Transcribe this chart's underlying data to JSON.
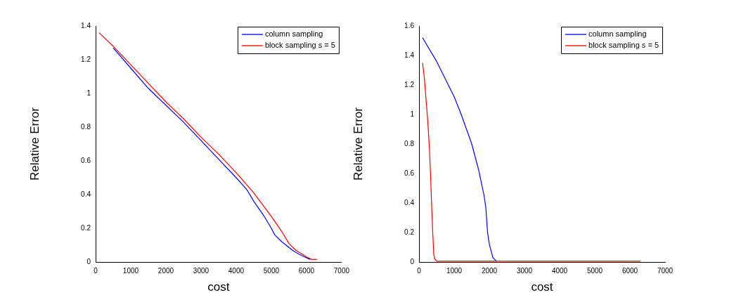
{
  "chart_data": [
    {
      "type": "line",
      "xlabel": "cost",
      "ylabel": "Relative Error",
      "xlim": [
        0,
        7000
      ],
      "ylim": [
        0,
        1.4
      ],
      "xticks": [
        0,
        1000,
        2000,
        3000,
        4000,
        5000,
        6000,
        7000
      ],
      "yticks": [
        0,
        0.2,
        0.4,
        0.6,
        0.8,
        1,
        1.2,
        1.4
      ],
      "grid": false,
      "legend": "top right",
      "marker": "none",
      "line_style": "solid",
      "series": [
        {
          "name": "column sampling",
          "color": "#0000ff",
          "x": [
            500,
            1000,
            1500,
            2000,
            2500,
            3000,
            3500,
            4000,
            4300,
            4500,
            4800,
            5000,
            5100,
            5300,
            5600,
            5800,
            6000,
            6100
          ],
          "values": [
            1.27,
            1.15,
            1.03,
            0.93,
            0.83,
            0.72,
            0.61,
            0.5,
            0.43,
            0.36,
            0.27,
            0.2,
            0.16,
            0.12,
            0.07,
            0.045,
            0.025,
            0.015
          ]
        },
        {
          "name": "block sampling s = 5",
          "color": "#ff0000",
          "x": [
            100,
            500,
            1000,
            1500,
            2000,
            2500,
            3000,
            3500,
            4000,
            4500,
            5000,
            5300,
            5500,
            5700,
            6000,
            6150,
            6300
          ],
          "values": [
            1.36,
            1.28,
            1.17,
            1.06,
            0.95,
            0.85,
            0.74,
            0.64,
            0.53,
            0.41,
            0.27,
            0.18,
            0.11,
            0.07,
            0.03,
            0.015,
            0.015
          ]
        }
      ]
    },
    {
      "type": "line",
      "xlabel": "cost",
      "ylabel": "Relative Error",
      "xlim": [
        0,
        7000
      ],
      "ylim": [
        0,
        1.6
      ],
      "xticks": [
        0,
        1000,
        2000,
        3000,
        4000,
        5000,
        6000,
        7000
      ],
      "yticks": [
        0,
        0.2,
        0.4,
        0.6,
        0.8,
        1,
        1.2,
        1.4,
        1.6
      ],
      "grid": false,
      "legend": "top right",
      "marker": "none",
      "line_style": "solid",
      "series": [
        {
          "name": "column sampling",
          "color": "#0000ff",
          "x": [
            100,
            500,
            1000,
            1200,
            1500,
            1700,
            1850,
            1900,
            1950,
            2000,
            2100,
            2200
          ],
          "values": [
            1.52,
            1.36,
            1.12,
            1.0,
            0.8,
            0.62,
            0.45,
            0.37,
            0.2,
            0.12,
            0.03,
            0.005
          ]
        },
        {
          "name": "block sampling s = 5",
          "color": "#ff0000",
          "x": [
            100,
            150,
            200,
            250,
            300,
            330,
            360,
            390,
            420,
            450,
            500,
            6300
          ],
          "values": [
            1.35,
            1.25,
            1.1,
            0.95,
            0.75,
            0.58,
            0.38,
            0.2,
            0.05,
            0.02,
            0.005,
            0.005
          ]
        }
      ]
    }
  ]
}
